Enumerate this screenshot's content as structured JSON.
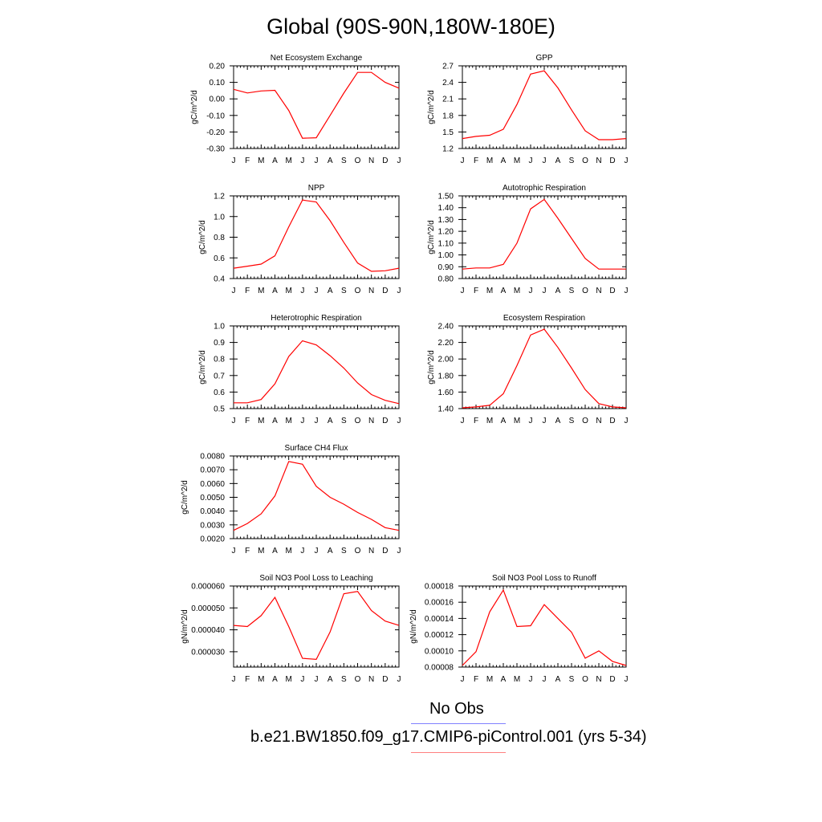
{
  "page_title": "Global (90S-90N,180W-180E)",
  "months": [
    "J",
    "F",
    "M",
    "A",
    "M",
    "J",
    "J",
    "A",
    "S",
    "O",
    "N",
    "D",
    "J"
  ],
  "line_color": "#ff0000",
  "chart_data": [
    {
      "type": "line",
      "title": "Net Ecosystem Exchange",
      "ylabel": "gC/m^2/d",
      "ylim": [
        -0.3,
        0.2
      ],
      "yticks": [
        "-0.30",
        "-0.20",
        "-0.10",
        "0.00",
        "0.10",
        "0.20"
      ],
      "ytick_values": [
        -0.3,
        -0.2,
        -0.1,
        0.0,
        0.1,
        0.2
      ],
      "values": [
        0.058,
        0.036,
        0.048,
        0.052,
        -0.07,
        -0.238,
        -0.235,
        -0.1,
        0.035,
        0.16,
        0.16,
        0.1,
        0.065
      ]
    },
    {
      "type": "line",
      "title": "GPP",
      "ylabel": "gC/m^2/d",
      "ylim": [
        1.2,
        2.7
      ],
      "yticks": [
        "1.2",
        "1.5",
        "1.8",
        "2.1",
        "2.4",
        "2.7"
      ],
      "ytick_values": [
        1.2,
        1.5,
        1.8,
        2.1,
        2.4,
        2.7
      ],
      "values": [
        1.38,
        1.42,
        1.44,
        1.55,
        2.0,
        2.55,
        2.61,
        2.3,
        1.9,
        1.52,
        1.36,
        1.36,
        1.38
      ]
    },
    {
      "type": "line",
      "title": "NPP",
      "ylabel": "gC/m^2/d",
      "ylim": [
        0.4,
        1.2
      ],
      "yticks": [
        "0.4",
        "0.6",
        "0.8",
        "1.0",
        "1.2"
      ],
      "ytick_values": [
        0.4,
        0.6,
        0.8,
        1.0,
        1.2
      ],
      "values": [
        0.5,
        0.52,
        0.54,
        0.62,
        0.9,
        1.16,
        1.14,
        0.96,
        0.75,
        0.55,
        0.47,
        0.475,
        0.5
      ]
    },
    {
      "type": "line",
      "title": "Autotrophic Respiration",
      "ylabel": "gC/m^2/d",
      "ylim": [
        0.8,
        1.5
      ],
      "yticks": [
        "0.80",
        "0.90",
        "1.00",
        "1.10",
        "1.20",
        "1.30",
        "1.40",
        "1.50"
      ],
      "ytick_values": [
        0.8,
        0.9,
        1.0,
        1.1,
        1.2,
        1.3,
        1.4,
        1.5
      ],
      "values": [
        0.88,
        0.89,
        0.89,
        0.92,
        1.1,
        1.39,
        1.47,
        1.31,
        1.14,
        0.97,
        0.88,
        0.88,
        0.88
      ]
    },
    {
      "type": "line",
      "title": "Heterotrophic Respiration",
      "ylabel": "gC/m^2/d",
      "ylim": [
        0.5,
        1.0
      ],
      "yticks": [
        "0.5",
        "0.6",
        "0.7",
        "0.8",
        "0.9",
        "1.0"
      ],
      "ytick_values": [
        0.5,
        0.6,
        0.7,
        0.8,
        0.9,
        1.0
      ],
      "values": [
        0.535,
        0.535,
        0.555,
        0.65,
        0.815,
        0.91,
        0.885,
        0.82,
        0.745,
        0.655,
        0.585,
        0.55,
        0.53
      ]
    },
    {
      "type": "line",
      "title": "Ecosystem Respiration",
      "ylabel": "gC/m^2/d",
      "ylim": [
        1.4,
        2.4
      ],
      "yticks": [
        "1.40",
        "1.60",
        "1.80",
        "2.00",
        "2.20",
        "2.40"
      ],
      "ytick_values": [
        1.4,
        1.6,
        1.8,
        2.0,
        2.2,
        2.4
      ],
      "values": [
        1.41,
        1.42,
        1.44,
        1.58,
        1.92,
        2.29,
        2.36,
        2.14,
        1.89,
        1.63,
        1.46,
        1.42,
        1.41
      ]
    },
    {
      "type": "line",
      "title": "Surface CH4 Flux",
      "ylabel": "gC/m^2/d",
      "ylim": [
        0.002,
        0.008
      ],
      "yticks": [
        "0.0020",
        "0.0030",
        "0.0040",
        "0.0050",
        "0.0060",
        "0.0070",
        "0.0080"
      ],
      "ytick_values": [
        0.002,
        0.003,
        0.004,
        0.005,
        0.006,
        0.007,
        0.008
      ],
      "values": [
        0.0026,
        0.0031,
        0.0038,
        0.0051,
        0.0076,
        0.0074,
        0.0058,
        0.005,
        0.0045,
        0.0039,
        0.0034,
        0.0028,
        0.0026
      ]
    },
    {
      "type": "line",
      "title": "Soil NO3 Pool Loss to Leaching",
      "ylabel": "gN/m^2/d",
      "ylim": [
        2.3e-05,
        6e-05
      ],
      "yticks": [
        "0.000030",
        "0.000040",
        "0.000050",
        "0.000060"
      ],
      "ytick_values": [
        3e-05,
        4e-05,
        5e-05,
        6e-05
      ],
      "values": [
        4.2e-05,
        4.15e-05,
        4.65e-05,
        5.48e-05,
        4.15e-05,
        2.7e-05,
        2.65e-05,
        3.9e-05,
        5.65e-05,
        5.75e-05,
        4.88e-05,
        4.4e-05,
        4.2e-05
      ]
    },
    {
      "type": "line",
      "title": "Soil NO3 Pool Loss to Runoff",
      "ylabel": "gN/m^2/d",
      "ylim": [
        8e-05,
        0.00018
      ],
      "yticks": [
        "0.00008",
        "0.00010",
        "0.00012",
        "0.00014",
        "0.00016",
        "0.00018"
      ],
      "ytick_values": [
        8e-05,
        0.0001,
        0.00012,
        0.00014,
        0.00016,
        0.00018
      ],
      "values": [
        8.2e-05,
        9.9e-05,
        0.000148,
        0.000175,
        0.00013,
        0.000131,
        0.000157,
        0.00014,
        0.000123,
        9.1e-05,
        0.0001,
        8.7e-05,
        8.2e-05
      ]
    }
  ],
  "legend": {
    "obs_label": "No Obs",
    "obs_color": "#8080ff",
    "model_label": "b.e21.BW1850.f09_g17.CMIP6-piControl.001 (yrs 5-34)",
    "model_color": "#ff8080"
  }
}
